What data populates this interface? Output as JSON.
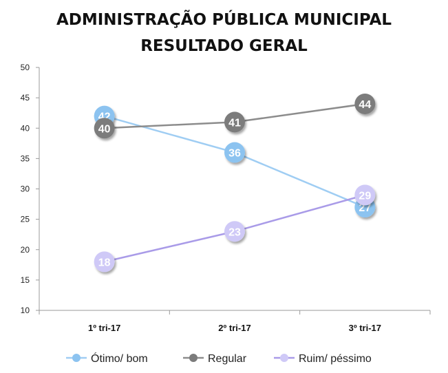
{
  "chart_data": {
    "type": "line",
    "title_lines": [
      "ADMINISTRAÇÃO PÚBLICA MUNICIPAL",
      "RESULTADO GERAL"
    ],
    "categories": [
      "1º tri-17",
      "2º tri-17",
      "3º tri-17"
    ],
    "ylim": [
      10,
      50
    ],
    "yticks": [
      "10",
      "15",
      "20",
      "25",
      "30",
      "35",
      "40",
      "45",
      "50"
    ],
    "grid": false,
    "legend_position": "bottom",
    "series": [
      {
        "name": "Ótimo/ bom",
        "values": [
          42,
          36,
          27
        ],
        "labels": [
          "42",
          "36",
          "27"
        ],
        "color": "#9fcdf3",
        "marker": "#8cc3f0"
      },
      {
        "name": "Regular",
        "values": [
          40,
          41,
          44
        ],
        "labels": [
          "40",
          "41",
          "44"
        ],
        "color": "#8c8c8c",
        "marker": "#7b7b7b"
      },
      {
        "name": "Ruim/ péssimo",
        "values": [
          18,
          23,
          29
        ],
        "labels": [
          "18",
          "23",
          "29"
        ],
        "color": "#a99be8",
        "marker": "#cfc9f7"
      }
    ]
  }
}
